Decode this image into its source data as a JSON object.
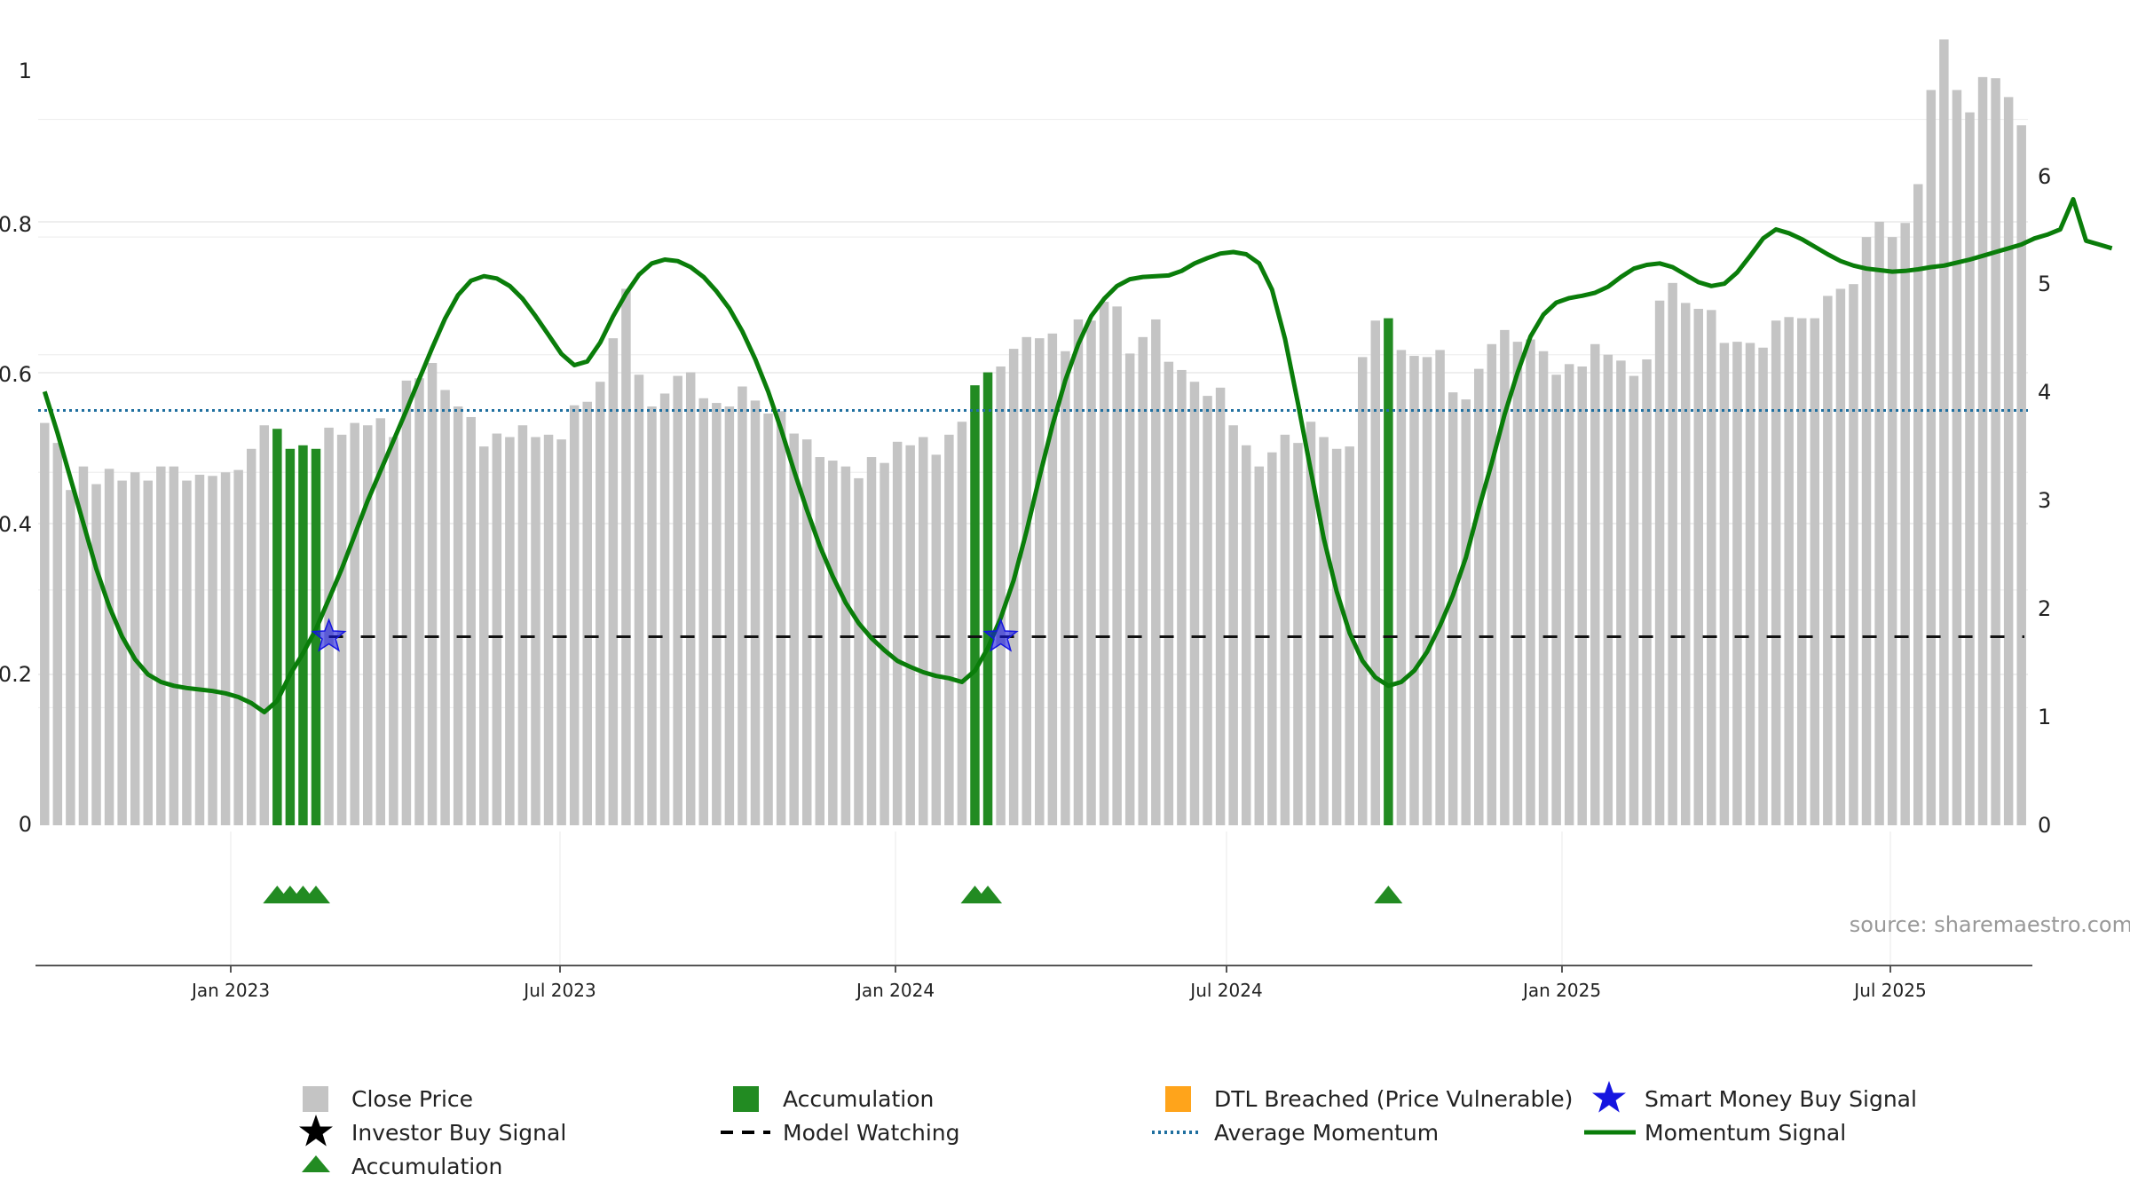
{
  "chart_data": {
    "type": "bar",
    "x_ticks": [
      "Jan 2023",
      "Jul 2023",
      "Jan 2024",
      "Jul 2024",
      "Jan 2025",
      "Jul 2025"
    ],
    "y_left": {
      "ticks": [
        "0",
        "0.2",
        "0.4",
        "0.6",
        "0.8",
        "1"
      ],
      "ylim": [
        0,
        1
      ]
    },
    "y_right": {
      "ticks": [
        "0",
        "1",
        "2",
        "3",
        "4",
        "5",
        "6"
      ],
      "ylim": [
        0,
        7
      ]
    },
    "grid": true,
    "legend_position": "bottom",
    "source_text": "source: sharemaestro.com",
    "close_price": {
      "name": "Close Price",
      "color": "#c4c4c4",
      "values": [
        3.42,
        3.25,
        2.85,
        3.05,
        2.9,
        3.03,
        2.93,
        3.0,
        2.93,
        3.05,
        3.05,
        2.93,
        2.98,
        2.97,
        3.0,
        3.02,
        3.2,
        3.4,
        3.37,
        3.2,
        3.23,
        3.2,
        3.38,
        3.32,
        3.42,
        3.4,
        3.46,
        3.3,
        3.78,
        3.8,
        3.93,
        3.7,
        3.56,
        3.47,
        3.22,
        3.33,
        3.3,
        3.4,
        3.3,
        3.32,
        3.28,
        3.57,
        3.6,
        3.77,
        4.14,
        4.56,
        3.83,
        3.56,
        3.67,
        3.82,
        3.85,
        3.63,
        3.59,
        3.56,
        3.73,
        3.61,
        3.5,
        3.52,
        3.33,
        3.28,
        3.13,
        3.1,
        3.05,
        2.95,
        3.13,
        3.08,
        3.26,
        3.23,
        3.3,
        3.15,
        3.32,
        3.43,
        3.74,
        3.85,
        3.9,
        4.05,
        4.15,
        4.14,
        4.18,
        4.03,
        4.3,
        4.29,
        4.45,
        4.41,
        4.01,
        4.15,
        4.3,
        3.94,
        3.87,
        3.77,
        3.65,
        3.72,
        3.4,
        3.23,
        3.05,
        3.17,
        3.32,
        3.25,
        3.43,
        3.3,
        3.2,
        3.22,
        3.98,
        4.29,
        4.31,
        4.04,
        3.99,
        3.98,
        4.04,
        3.68,
        3.62,
        3.88,
        4.09,
        4.21,
        4.11,
        4.13,
        4.03,
        3.83,
        3.92,
        3.9,
        4.09,
        4.0,
        3.95,
        3.82,
        3.96,
        4.46,
        4.61,
        4.44,
        4.39,
        4.38,
        4.1,
        4.11,
        4.1,
        4.06,
        4.29,
        4.32,
        4.31,
        4.31,
        4.5,
        4.56,
        4.6,
        5.0,
        5.13,
        5.0,
        5.12,
        5.45,
        6.25,
        6.68,
        6.25,
        6.06,
        6.36,
        6.35,
        6.19,
        5.95
      ],
      "accumulation_bar_indices": [
        18,
        19,
        20,
        21,
        72,
        73,
        104
      ]
    },
    "accumulation": {
      "name": "Accumulation",
      "color": "#228b22"
    },
    "dtl_breached": {
      "name": "DTL Breached (Price Vulnerable)",
      "color": "#ffa41b"
    },
    "smart_money_buy_signal": {
      "name": "Smart Money Buy Signal",
      "color": "#1515e0",
      "value": 0.25,
      "at_bar_indices": [
        22,
        74
      ]
    },
    "investor_buy_signal": {
      "name": "Investor Buy Signal",
      "color": "#000000"
    },
    "model_watching": {
      "name": "Model Watching",
      "color": "#000000",
      "value": 0.25,
      "from_bar_index": 22
    },
    "average_momentum": {
      "name": "Average Momentum",
      "color": "#1f6f9f",
      "value": 0.55
    },
    "momentum_signal": {
      "name": "Momentum Signal",
      "color": "#0a7d0a",
      "values": [
        0.575,
        0.52,
        0.46,
        0.4,
        0.34,
        0.29,
        0.25,
        0.22,
        0.2,
        0.19,
        0.185,
        0.182,
        0.18,
        0.178,
        0.175,
        0.17,
        0.162,
        0.15,
        0.165,
        0.2,
        0.228,
        0.26,
        0.3,
        0.34,
        0.385,
        0.43,
        0.47,
        0.51,
        0.55,
        0.592,
        0.633,
        0.672,
        0.703,
        0.722,
        0.728,
        0.725,
        0.715,
        0.698,
        0.675,
        0.65,
        0.625,
        0.61,
        0.615,
        0.64,
        0.675,
        0.705,
        0.73,
        0.745,
        0.75,
        0.748,
        0.74,
        0.727,
        0.708,
        0.685,
        0.655,
        0.618,
        0.575,
        0.525,
        0.47,
        0.418,
        0.37,
        0.33,
        0.295,
        0.268,
        0.248,
        0.232,
        0.218,
        0.21,
        0.203,
        0.198,
        0.195,
        0.19,
        0.205,
        0.235,
        0.275,
        0.325,
        0.39,
        0.462,
        0.53,
        0.59,
        0.638,
        0.675,
        0.698,
        0.715,
        0.724,
        0.727,
        0.728,
        0.729,
        0.735,
        0.745,
        0.752,
        0.758,
        0.76,
        0.757,
        0.745,
        0.71,
        0.645,
        0.56,
        0.47,
        0.38,
        0.31,
        0.255,
        0.218,
        0.196,
        0.185,
        0.19,
        0.205,
        0.23,
        0.265,
        0.305,
        0.355,
        0.42,
        0.48,
        0.545,
        0.6,
        0.648,
        0.677,
        0.693,
        0.699,
        0.702,
        0.706,
        0.714,
        0.727,
        0.738,
        0.743,
        0.745,
        0.74,
        0.73,
        0.72,
        0.715,
        0.718,
        0.733,
        0.755,
        0.778,
        0.79,
        0.785,
        0.777,
        0.767,
        0.757,
        0.748,
        0.742,
        0.738,
        0.736,
        0.734,
        0.735,
        0.737,
        0.74,
        0.742,
        0.746,
        0.75,
        0.755,
        0.76,
        0.765,
        0.77,
        0.778,
        0.783,
        0.79,
        0.83,
        0.775,
        0.77,
        0.765
      ]
    }
  }
}
